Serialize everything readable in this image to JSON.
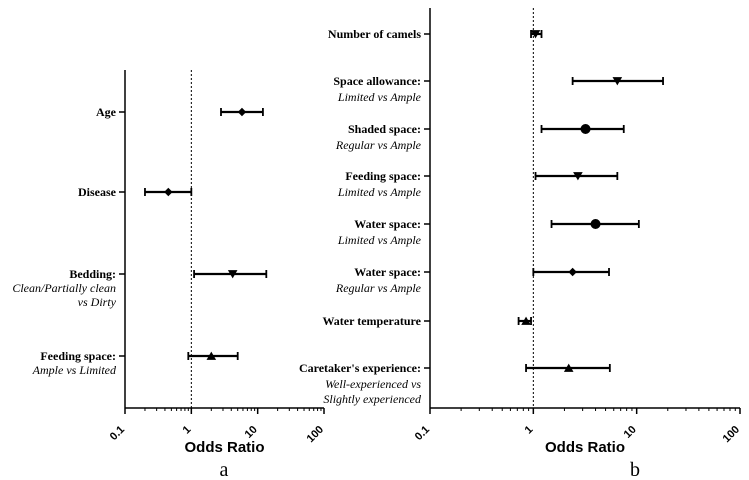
{
  "chart_data": [
    {
      "type": "forest",
      "panel_label": "a",
      "xlabel": "Odds Ratio",
      "xscale": "log",
      "xlim": [
        0.1,
        100
      ],
      "ticks": [
        "0.1",
        "1",
        "10",
        "100"
      ],
      "reference_line": 1,
      "rows": [
        {
          "label": "Age",
          "sub": [],
          "or": 5.8,
          "lo": 2.8,
          "hi": 12.0,
          "marker": "diamond"
        },
        {
          "label": "Disease",
          "sub": [],
          "or": 0.45,
          "lo": 0.2,
          "hi": 1.0,
          "marker": "diamond"
        },
        {
          "label": "Bedding:",
          "sub": [
            "Clean/Partially clean",
            "vs Dirty"
          ],
          "or": 4.2,
          "lo": 1.1,
          "hi": 13.5,
          "marker": "triangle-down"
        },
        {
          "label": "Feeding space:",
          "sub": [
            "Ample vs Limited"
          ],
          "or": 2.0,
          "lo": 0.9,
          "hi": 5.0,
          "marker": "triangle-up"
        }
      ]
    },
    {
      "type": "forest",
      "panel_label": "b",
      "xlabel": "Odds Ratio",
      "xscale": "log",
      "xlim": [
        0.1,
        100
      ],
      "ticks": [
        "0.1",
        "1",
        "10",
        "100"
      ],
      "reference_line": 1,
      "rows": [
        {
          "label": "Number of camels",
          "sub": [],
          "or": 1.05,
          "lo": 0.95,
          "hi": 1.2,
          "marker": "triangle-down"
        },
        {
          "label": "Space allowance:",
          "sub": [
            "Limited vs Ample"
          ],
          "or": 6.5,
          "lo": 2.4,
          "hi": 18.0,
          "marker": "triangle-down"
        },
        {
          "label": "Shaded space:",
          "sub": [
            "Regular vs Ample"
          ],
          "or": 3.2,
          "lo": 1.2,
          "hi": 7.5,
          "marker": "circle"
        },
        {
          "label": "Feeding space:",
          "sub": [
            "Limited vs Ample"
          ],
          "or": 2.7,
          "lo": 1.05,
          "hi": 6.5,
          "marker": "triangle-down"
        },
        {
          "label": "Water space:",
          "sub": [
            "Limited vs Ample"
          ],
          "or": 4.0,
          "lo": 1.5,
          "hi": 10.5,
          "marker": "circle"
        },
        {
          "label": "Water space:",
          "sub": [
            "Regular vs Ample"
          ],
          "or": 2.4,
          "lo": 1.0,
          "hi": 5.4,
          "marker": "diamond"
        },
        {
          "label": "Water temperature",
          "sub": [],
          "or": 0.85,
          "lo": 0.72,
          "hi": 0.95,
          "marker": "triangle-up"
        },
        {
          "label": "Caretaker's experience:",
          "sub": [
            "Well-experienced vs",
            "Slightly experienced"
          ],
          "or": 2.2,
          "lo": 0.85,
          "hi": 5.5,
          "marker": "triangle-up"
        }
      ]
    }
  ]
}
